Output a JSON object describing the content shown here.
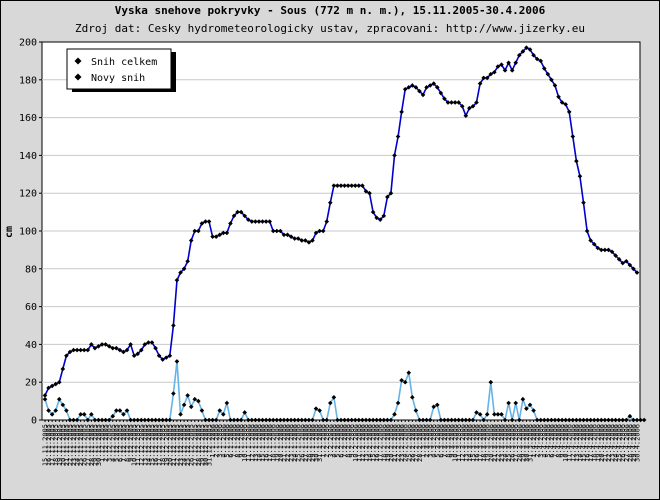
{
  "chart_data": {
    "type": "line",
    "title": "Vyska snehove pokryvky - Sous (772 m n. m.), 15.11.2005-30.4.2006",
    "subtitle": "Zdroj dat: Cesky hydrometeorologicky ustav, zpracovani: http://www.jizerky.eu",
    "ylabel": "cm",
    "xlabel": "",
    "ylim": [
      0,
      200
    ],
    "yticks": [
      0,
      20,
      40,
      60,
      80,
      100,
      120,
      140,
      160,
      180,
      200
    ],
    "grid": true,
    "legend_position": "top-left",
    "x_start": "15.11.2005",
    "x_end": "30.4.2006",
    "n_days": 167,
    "series": [
      {
        "name": "Snih celkem",
        "color": "#0000cc",
        "marker_color": "#000000",
        "values": [
          13,
          17,
          18,
          19,
          20,
          27,
          34,
          36,
          37,
          37,
          37,
          37,
          37,
          40,
          38,
          39,
          40,
          40,
          39,
          38,
          38,
          37,
          36,
          37,
          40,
          34,
          35,
          37,
          40,
          41,
          41,
          38,
          34,
          32,
          33,
          34,
          50,
          74,
          78,
          80,
          84,
          95,
          100,
          100,
          104,
          105,
          105,
          97,
          97,
          98,
          99,
          99,
          104,
          108,
          110,
          110,
          108,
          106,
          105,
          105,
          105,
          105,
          105,
          105,
          100,
          100,
          100,
          98,
          98,
          97,
          96,
          96,
          95,
          95,
          94,
          95,
          99,
          100,
          100,
          105,
          115,
          124,
          124,
          124,
          124,
          124,
          124,
          124,
          124,
          124,
          121,
          120,
          110,
          107,
          106,
          108,
          118,
          120,
          140,
          150,
          163,
          175,
          176,
          177,
          176,
          174,
          172,
          176,
          177,
          178,
          176,
          173,
          170,
          168,
          168,
          168,
          168,
          166,
          161,
          165,
          166,
          168,
          178,
          181,
          181,
          183,
          184,
          187,
          188,
          185,
          189,
          185,
          189,
          193,
          195,
          197,
          196,
          193,
          191,
          190,
          186,
          183,
          180,
          177,
          171,
          168,
          167,
          163,
          150,
          137,
          129,
          115,
          100,
          95,
          93,
          91,
          90,
          90,
          90,
          89,
          87,
          85,
          83,
          84,
          82,
          80,
          78
        ]
      },
      {
        "name": "Novy snih",
        "color": "#66b3e6",
        "marker_color": "#000000",
        "values": [
          11,
          5,
          3,
          5,
          11,
          8,
          5,
          0,
          0,
          0,
          3,
          3,
          0,
          3,
          0,
          0,
          0,
          0,
          0,
          2,
          5,
          5,
          3,
          5,
          0,
          0,
          0,
          0,
          0,
          0,
          0,
          0,
          0,
          0,
          0,
          0,
          14,
          31,
          3,
          8,
          13,
          7,
          11,
          10,
          5,
          0,
          0,
          0,
          0,
          5,
          3,
          9,
          0,
          0,
          0,
          0,
          4,
          0,
          0,
          0,
          0,
          0,
          0,
          0,
          0,
          0,
          0,
          0,
          0,
          0,
          0,
          0,
          0,
          0,
          0,
          0,
          6,
          5,
          0,
          0,
          9,
          12,
          0,
          0,
          0,
          0,
          0,
          0,
          0,
          0,
          0,
          0,
          0,
          0,
          0,
          0,
          0,
          0,
          3,
          9,
          21,
          20,
          25,
          12,
          5,
          0,
          0,
          0,
          0,
          7,
          8,
          0,
          0,
          0,
          0,
          0,
          0,
          0,
          0,
          0,
          0,
          4,
          3,
          0,
          3,
          20,
          3,
          3,
          3,
          0,
          9,
          0,
          9,
          0,
          11,
          6,
          8,
          5,
          0,
          0,
          0,
          0,
          0,
          0,
          0,
          0,
          0,
          0,
          0,
          0,
          0,
          0,
          0,
          0,
          0,
          0,
          0,
          0,
          0,
          0,
          0,
          0,
          0,
          0,
          2,
          0,
          0,
          0,
          0
        ]
      }
    ]
  }
}
